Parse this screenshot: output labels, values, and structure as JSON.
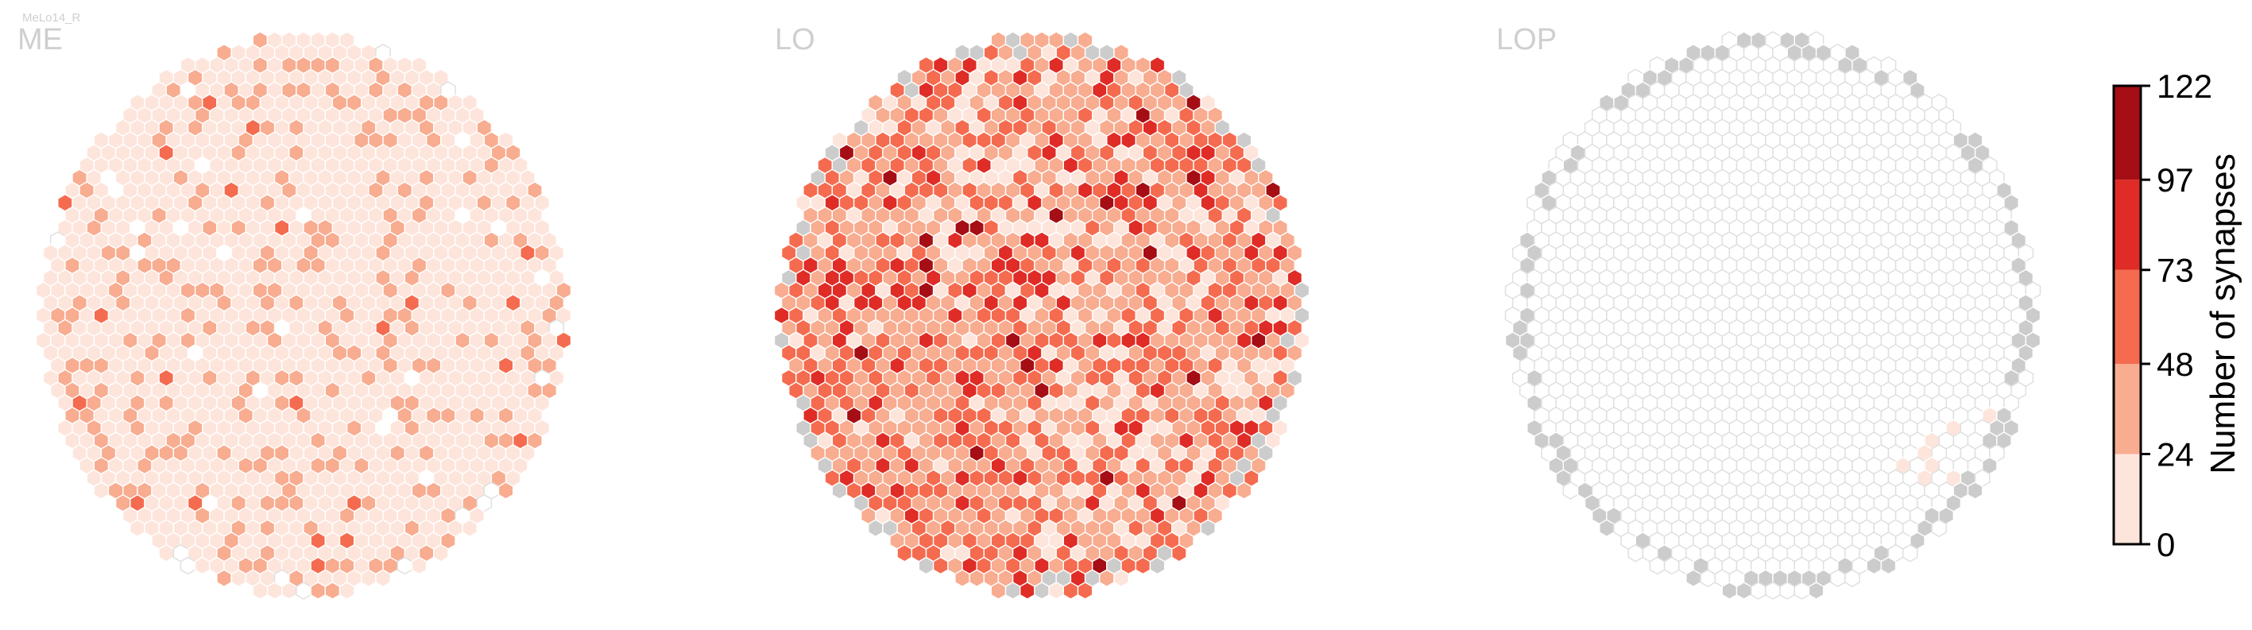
{
  "figure": {
    "cell_type": "MeLo14_R"
  },
  "chart_data": {
    "type": "heatmap",
    "panels": [
      {
        "label": "ME"
      },
      {
        "label": "LO"
      },
      {
        "label": "LOP"
      }
    ],
    "colorbar": {
      "label": "Number of synapses",
      "ticks": [
        0,
        24,
        48,
        73,
        97,
        122
      ],
      "range": [
        0,
        122
      ],
      "bin_colors": [
        "#fde5dc",
        "#f8ac90",
        "#f56b4f",
        "#df2c26",
        "#a50e14"
      ],
      "no_data_color": "#cccccc",
      "empty_stroke": "#dedede"
    }
  }
}
